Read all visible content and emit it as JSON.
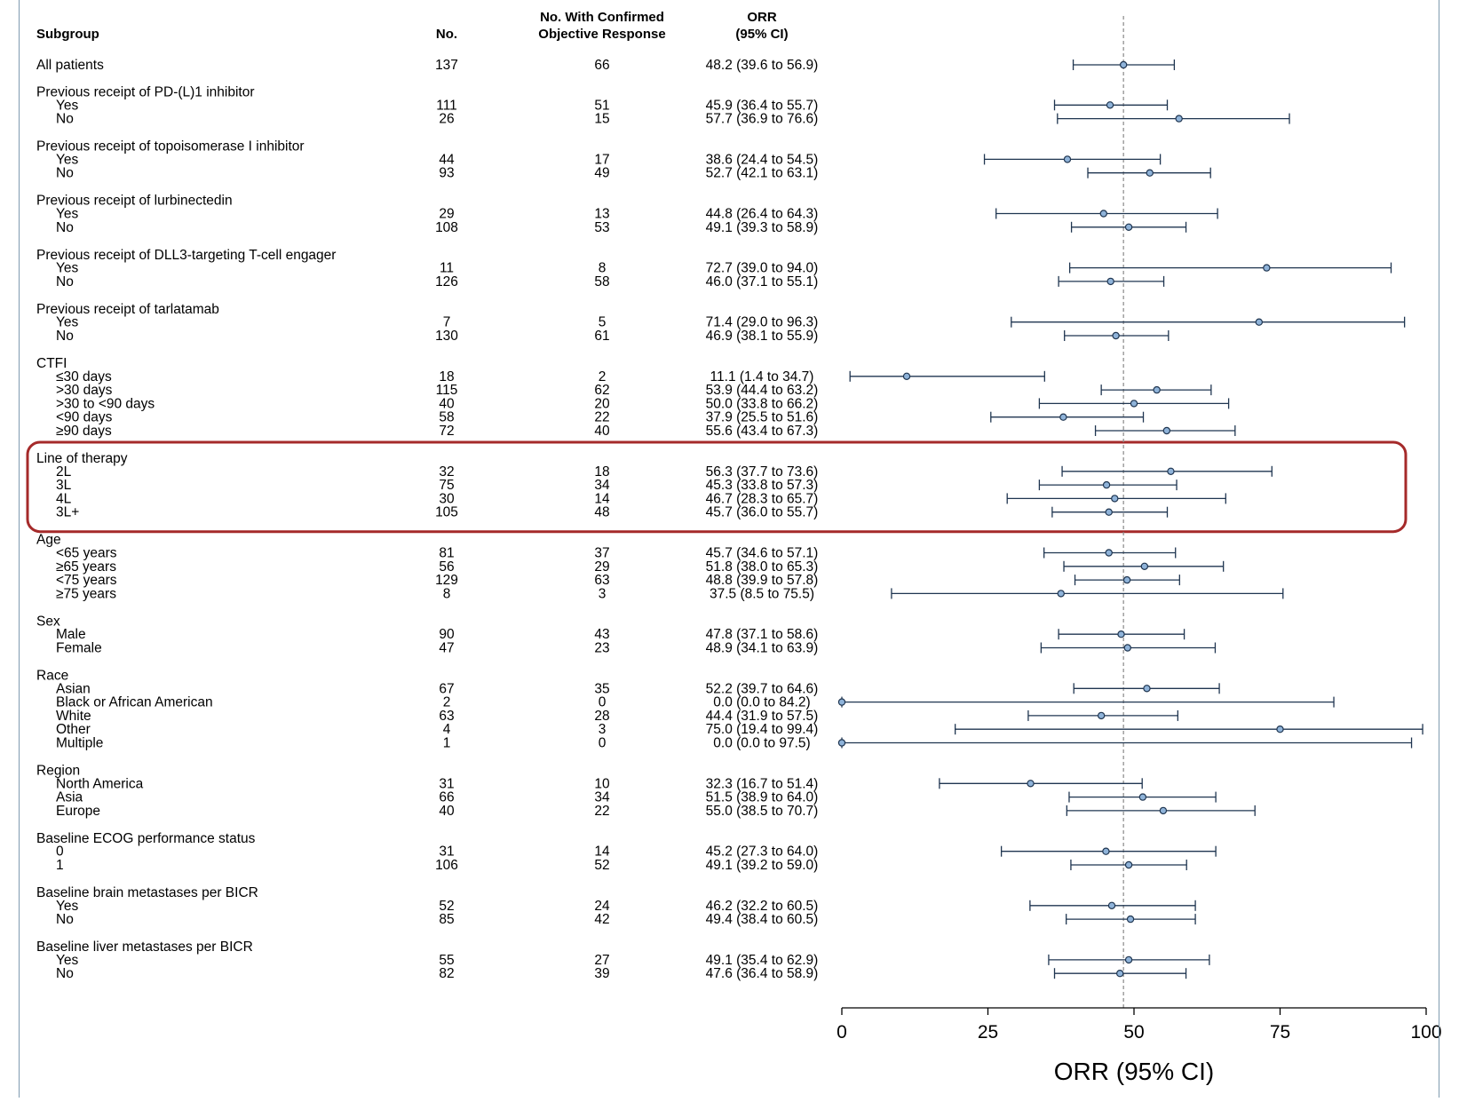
{
  "header": {
    "subgroup": "Subgroup",
    "no": "No.",
    "responders_line1": "No. With Confirmed",
    "responders_line2": "Objective Response",
    "orr_line1": "ORR",
    "orr_line2": "(95% CI)"
  },
  "highlight_group": "Line of therapy",
  "colors": {
    "marker_fill": "#8fb3d9",
    "marker_stroke": "#1f3550",
    "line": "#1f3550",
    "reference_line": "#888888",
    "highlight_box": "#a52a2a"
  },
  "chart_data": {
    "type": "forest",
    "x_axis": {
      "label": "ORR (95% CI)",
      "range": [
        0,
        100
      ],
      "ticks": [
        "0",
        "25",
        "50",
        "75",
        "100"
      ],
      "reference_value": 48.2
    },
    "rows": [
      {
        "label": "All patients",
        "kind": "data",
        "n": "137",
        "responders": "66",
        "ci_text": "48.2 (39.6 to 56.9)",
        "est": 48.2,
        "lo": 39.6,
        "hi": 56.9
      },
      {
        "label": "Previous receipt of PD-(L)1 inhibitor",
        "kind": "group"
      },
      {
        "label": "Yes",
        "kind": "data",
        "n": "111",
        "responders": "51",
        "ci_text": "45.9 (36.4 to 55.7)",
        "est": 45.9,
        "lo": 36.4,
        "hi": 55.7
      },
      {
        "label": "No",
        "kind": "data",
        "n": "26",
        "responders": "15",
        "ci_text": "57.7 (36.9 to 76.6)",
        "est": 57.7,
        "lo": 36.9,
        "hi": 76.6
      },
      {
        "label": "Previous receipt of topoisomerase I inhibitor",
        "kind": "group"
      },
      {
        "label": "Yes",
        "kind": "data",
        "n": "44",
        "responders": "17",
        "ci_text": "38.6 (24.4 to 54.5)",
        "est": 38.6,
        "lo": 24.4,
        "hi": 54.5
      },
      {
        "label": "No",
        "kind": "data",
        "n": "93",
        "responders": "49",
        "ci_text": "52.7 (42.1 to 63.1)",
        "est": 52.7,
        "lo": 42.1,
        "hi": 63.1
      },
      {
        "label": "Previous receipt of lurbinectedin",
        "kind": "group"
      },
      {
        "label": "Yes",
        "kind": "data",
        "n": "29",
        "responders": "13",
        "ci_text": "44.8 (26.4 to 64.3)",
        "est": 44.8,
        "lo": 26.4,
        "hi": 64.3
      },
      {
        "label": "No",
        "kind": "data",
        "n": "108",
        "responders": "53",
        "ci_text": "49.1 (39.3 to 58.9)",
        "est": 49.1,
        "lo": 39.3,
        "hi": 58.9
      },
      {
        "label": "Previous receipt of DLL3-targeting T-cell engager",
        "kind": "group"
      },
      {
        "label": "Yes",
        "kind": "data",
        "n": "11",
        "responders": "8",
        "ci_text": "72.7 (39.0 to 94.0)",
        "est": 72.7,
        "lo": 39.0,
        "hi": 94.0
      },
      {
        "label": "No",
        "kind": "data",
        "n": "126",
        "responders": "58",
        "ci_text": "46.0 (37.1 to 55.1)",
        "est": 46.0,
        "lo": 37.1,
        "hi": 55.1
      },
      {
        "label": "Previous receipt of tarlatamab",
        "kind": "group"
      },
      {
        "label": "Yes",
        "kind": "data",
        "n": "7",
        "responders": "5",
        "ci_text": "71.4 (29.0 to 96.3)",
        "est": 71.4,
        "lo": 29.0,
        "hi": 96.3
      },
      {
        "label": "No",
        "kind": "data",
        "n": "130",
        "responders": "61",
        "ci_text": "46.9 (38.1 to 55.9)",
        "est": 46.9,
        "lo": 38.1,
        "hi": 55.9
      },
      {
        "label": "CTFI",
        "kind": "group"
      },
      {
        "label": "≤30 days",
        "kind": "data",
        "n": "18",
        "responders": "2",
        "ci_text": "11.1 (1.4 to 34.7)",
        "est": 11.1,
        "lo": 1.4,
        "hi": 34.7
      },
      {
        "label": ">30 days",
        "kind": "data",
        "n": "115",
        "responders": "62",
        "ci_text": "53.9 (44.4 to 63.2)",
        "est": 53.9,
        "lo": 44.4,
        "hi": 63.2
      },
      {
        "label": ">30 to <90 days",
        "kind": "data",
        "n": "40",
        "responders": "20",
        "ci_text": "50.0 (33.8 to 66.2)",
        "est": 50.0,
        "lo": 33.8,
        "hi": 66.2
      },
      {
        "label": "<90 days",
        "kind": "data",
        "n": "58",
        "responders": "22",
        "ci_text": "37.9 (25.5 to 51.6)",
        "est": 37.9,
        "lo": 25.5,
        "hi": 51.6
      },
      {
        "label": "≥90 days",
        "kind": "data",
        "n": "72",
        "responders": "40",
        "ci_text": "55.6 (43.4 to 67.3)",
        "est": 55.6,
        "lo": 43.4,
        "hi": 67.3
      },
      {
        "label": "Line of therapy",
        "kind": "group"
      },
      {
        "label": "2L",
        "kind": "data",
        "n": "32",
        "responders": "18",
        "ci_text": "56.3 (37.7 to 73.6)",
        "est": 56.3,
        "lo": 37.7,
        "hi": 73.6
      },
      {
        "label": "3L",
        "kind": "data",
        "n": "75",
        "responders": "34",
        "ci_text": "45.3 (33.8 to 57.3)",
        "est": 45.3,
        "lo": 33.8,
        "hi": 57.3
      },
      {
        "label": "4L",
        "kind": "data",
        "n": "30",
        "responders": "14",
        "ci_text": "46.7 (28.3 to 65.7)",
        "est": 46.7,
        "lo": 28.3,
        "hi": 65.7
      },
      {
        "label": "3L+",
        "kind": "data",
        "n": "105",
        "responders": "48",
        "ci_text": "45.7 (36.0 to 55.7)",
        "est": 45.7,
        "lo": 36.0,
        "hi": 55.7
      },
      {
        "label": "Age",
        "kind": "group"
      },
      {
        "label": "<65 years",
        "kind": "data",
        "n": "81",
        "responders": "37",
        "ci_text": "45.7 (34.6 to 57.1)",
        "est": 45.7,
        "lo": 34.6,
        "hi": 57.1
      },
      {
        "label": "≥65 years",
        "kind": "data",
        "n": "56",
        "responders": "29",
        "ci_text": "51.8 (38.0 to 65.3)",
        "est": 51.8,
        "lo": 38.0,
        "hi": 65.3
      },
      {
        "label": "<75 years",
        "kind": "data",
        "n": "129",
        "responders": "63",
        "ci_text": "48.8 (39.9 to 57.8)",
        "est": 48.8,
        "lo": 39.9,
        "hi": 57.8
      },
      {
        "label": "≥75 years",
        "kind": "data",
        "n": "8",
        "responders": "3",
        "ci_text": "37.5 (8.5 to 75.5)",
        "est": 37.5,
        "lo": 8.5,
        "hi": 75.5
      },
      {
        "label": "Sex",
        "kind": "group"
      },
      {
        "label": "Male",
        "kind": "data",
        "n": "90",
        "responders": "43",
        "ci_text": "47.8 (37.1 to 58.6)",
        "est": 47.8,
        "lo": 37.1,
        "hi": 58.6
      },
      {
        "label": "Female",
        "kind": "data",
        "n": "47",
        "responders": "23",
        "ci_text": "48.9 (34.1 to 63.9)",
        "est": 48.9,
        "lo": 34.1,
        "hi": 63.9
      },
      {
        "label": "Race",
        "kind": "group"
      },
      {
        "label": "Asian",
        "kind": "data",
        "n": "67",
        "responders": "35",
        "ci_text": "52.2 (39.7 to 64.6)",
        "est": 52.2,
        "lo": 39.7,
        "hi": 64.6
      },
      {
        "label": "Black or African American",
        "kind": "data",
        "n": "2",
        "responders": "0",
        "ci_text": "0.0 (0.0 to 84.2)",
        "est": 0.0,
        "lo": 0.0,
        "hi": 84.2
      },
      {
        "label": "White",
        "kind": "data",
        "n": "63",
        "responders": "28",
        "ci_text": "44.4 (31.9 to 57.5)",
        "est": 44.4,
        "lo": 31.9,
        "hi": 57.5
      },
      {
        "label": "Other",
        "kind": "data",
        "n": "4",
        "responders": "3",
        "ci_text": "75.0 (19.4 to 99.4)",
        "est": 75.0,
        "lo": 19.4,
        "hi": 99.4
      },
      {
        "label": "Multiple",
        "kind": "data",
        "n": "1",
        "responders": "0",
        "ci_text": "0.0 (0.0 to 97.5)",
        "est": 0.0,
        "lo": 0.0,
        "hi": 97.5
      },
      {
        "label": "Region",
        "kind": "group"
      },
      {
        "label": "North America",
        "kind": "data",
        "n": "31",
        "responders": "10",
        "ci_text": "32.3 (16.7 to 51.4)",
        "est": 32.3,
        "lo": 16.7,
        "hi": 51.4
      },
      {
        "label": "Asia",
        "kind": "data",
        "n": "66",
        "responders": "34",
        "ci_text": "51.5 (38.9 to 64.0)",
        "est": 51.5,
        "lo": 38.9,
        "hi": 64.0
      },
      {
        "label": "Europe",
        "kind": "data",
        "n": "40",
        "responders": "22",
        "ci_text": "55.0 (38.5 to 70.7)",
        "est": 55.0,
        "lo": 38.5,
        "hi": 70.7
      },
      {
        "label": "Baseline ECOG performance status",
        "kind": "group"
      },
      {
        "label": "0",
        "kind": "data",
        "n": "31",
        "responders": "14",
        "ci_text": "45.2 (27.3 to 64.0)",
        "est": 45.2,
        "lo": 27.3,
        "hi": 64.0
      },
      {
        "label": "1",
        "kind": "data",
        "n": "106",
        "responders": "52",
        "ci_text": "49.1 (39.2 to 59.0)",
        "est": 49.1,
        "lo": 39.2,
        "hi": 59.0
      },
      {
        "label": "Baseline brain metastases per BICR",
        "kind": "group"
      },
      {
        "label": "Yes",
        "kind": "data",
        "n": "52",
        "responders": "24",
        "ci_text": "46.2 (32.2 to 60.5)",
        "est": 46.2,
        "lo": 32.2,
        "hi": 60.5
      },
      {
        "label": "No",
        "kind": "data",
        "n": "85",
        "responders": "42",
        "ci_text": "49.4 (38.4 to 60.5)",
        "est": 49.4,
        "lo": 38.4,
        "hi": 60.5
      },
      {
        "label": "Baseline liver metastases per BICR",
        "kind": "group"
      },
      {
        "label": "Yes",
        "kind": "data",
        "n": "55",
        "responders": "27",
        "ci_text": "49.1 (35.4 to 62.9)",
        "est": 49.1,
        "lo": 35.4,
        "hi": 62.9
      },
      {
        "label": "No",
        "kind": "data",
        "n": "82",
        "responders": "39",
        "ci_text": "47.6 (36.4 to 58.9)",
        "est": 47.6,
        "lo": 36.4,
        "hi": 58.9
      }
    ]
  }
}
